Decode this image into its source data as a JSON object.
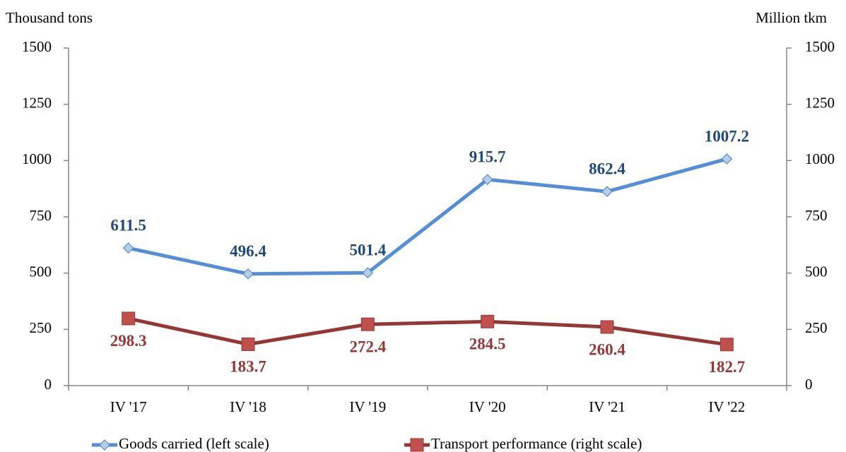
{
  "chart_data": {
    "type": "line",
    "y_label": "Thousand tons",
    "y2_label": "Million tkm",
    "categories": [
      "IV '17",
      "IV '18",
      "IV '19",
      "IV '20",
      "IV '21",
      "IV '22"
    ],
    "series": [
      {
        "name": "Goods carried (left scale)",
        "color": "#558ed5",
        "marker_fill": "#b9cde5",
        "marker": "diamond",
        "label_color": "#1f497d",
        "values": [
          611.5,
          496.4,
          501.4,
          915.7,
          862.4,
          1007.2
        ]
      },
      {
        "name": "Transport performance (right scale)",
        "color": "#953735",
        "marker_fill": "#c0504d",
        "marker": "square",
        "axis": "y2",
        "label_color": "#953735",
        "values": [
          298.3,
          183.7,
          272.4,
          284.5,
          260.4,
          182.7
        ]
      }
    ],
    "ylim": [
      0,
      1500
    ],
    "yticks": [
      0,
      250,
      500,
      750,
      1000,
      1250,
      1500
    ],
    "y2lim": [
      0,
      1500
    ],
    "y2ticks": [
      0,
      250,
      500,
      750,
      1000,
      1250,
      1500
    ],
    "grid": false,
    "legend": "bottom"
  }
}
